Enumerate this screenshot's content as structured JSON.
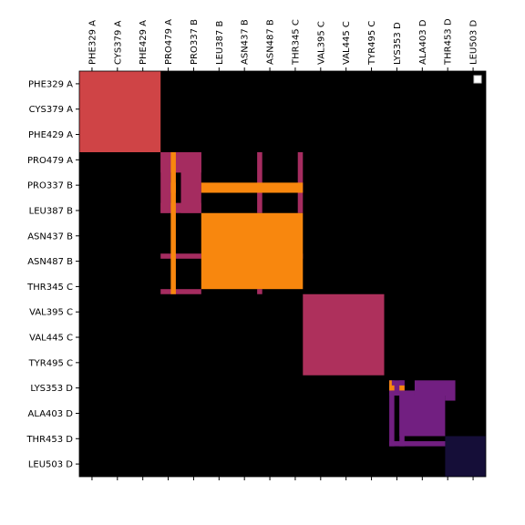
{
  "chart_data": {
    "type": "heatmap",
    "title": "",
    "xlabel": "",
    "ylabel": "",
    "labels": [
      "PHE329 A",
      "CYS379 A",
      "PHE429 A",
      "PRO479 A",
      "PRO337 B",
      "LEU387 B",
      "ASN437 B",
      "ASN487 B",
      "THR345 C",
      "VAL395 C",
      "VAL445 C",
      "TYR495 C",
      "LYS353 D",
      "ALA403 D",
      "THR453 D",
      "LEU503 D"
    ],
    "background_color": "#000000",
    "colors": {
      "red": "#cf4446",
      "magenta": "#a52c60",
      "orange": "#f8870e",
      "crimson": "#ae305c",
      "purple": "#721f81",
      "indigo": "#150e38"
    },
    "blocks": [
      {
        "rows": [
          0,
          16
        ],
        "cols": [
          0,
          16
        ],
        "color": "red"
      },
      {
        "rows": [
          16,
          20
        ],
        "cols": [
          16,
          24
        ],
        "color": "magenta"
      },
      {
        "rows": [
          16,
          28
        ],
        "cols": [
          16,
          18
        ],
        "color": "magenta"
      },
      {
        "rows": [
          16,
          20
        ],
        "cols": [
          18,
          24
        ],
        "color": "magenta"
      },
      {
        "rows": [
          16,
          28
        ],
        "cols": [
          20,
          24
        ],
        "color": "magenta"
      },
      {
        "rows": [
          26,
          28
        ],
        "cols": [
          16,
          24
        ],
        "color": "magenta"
      },
      {
        "rows": [
          16,
          28
        ],
        "cols": [
          35,
          36
        ],
        "color": "magenta"
      },
      {
        "rows": [
          16,
          28
        ],
        "cols": [
          43,
          44
        ],
        "color": "magenta"
      },
      {
        "rows": [
          36,
          37
        ],
        "cols": [
          16,
          24
        ],
        "color": "magenta"
      },
      {
        "rows": [
          36,
          37
        ],
        "cols": [
          35,
          44
        ],
        "color": "magenta"
      },
      {
        "rows": [
          43,
          44
        ],
        "cols": [
          16,
          24
        ],
        "color": "magenta"
      },
      {
        "rows": [
          43,
          44
        ],
        "cols": [
          35,
          36
        ],
        "color": "magenta"
      },
      {
        "rows": [
          22,
          24
        ],
        "cols": [
          24,
          44
        ],
        "color": "orange"
      },
      {
        "rows": [
          16,
          44
        ],
        "cols": [
          18,
          19
        ],
        "color": "orange"
      },
      {
        "rows": [
          28,
          43
        ],
        "cols": [
          24,
          44
        ],
        "color": "orange"
      },
      {
        "rows": [
          22,
          24
        ],
        "cols": [
          18,
          19
        ],
        "color": "orange"
      },
      {
        "rows": [
          44,
          60
        ],
        "cols": [
          44,
          60
        ],
        "color": "crimson"
      },
      {
        "rows": [
          61,
          64
        ],
        "cols": [
          61,
          64
        ],
        "color": "purple"
      },
      {
        "rows": [
          61,
          74
        ],
        "cols": [
          63,
          64
        ],
        "color": "purple"
      },
      {
        "rows": [
          63,
          72
        ],
        "cols": [
          63,
          72
        ],
        "color": "purple"
      },
      {
        "rows": [
          61,
          64
        ],
        "cols": [
          66,
          74
        ],
        "color": "purple"
      },
      {
        "rows": [
          61,
          74
        ],
        "cols": [
          61,
          62
        ],
        "color": "purple"
      },
      {
        "rows": [
          73,
          74
        ],
        "cols": [
          61,
          74
        ],
        "color": "purple"
      },
      {
        "rows": [
          64,
          65
        ],
        "cols": [
          72,
          74
        ],
        "color": "purple"
      },
      {
        "rows": [
          62,
          63
        ],
        "cols": [
          61,
          62
        ],
        "color": "orange"
      },
      {
        "rows": [
          62,
          63
        ],
        "cols": [
          63,
          64
        ],
        "color": "orange"
      },
      {
        "rows": [
          61,
          63
        ],
        "cols": [
          61,
          61.5
        ],
        "color": "orange"
      },
      {
        "rows": [
          72,
          80
        ],
        "cols": [
          72,
          80
        ],
        "color": "indigo"
      }
    ],
    "grid_size": 80,
    "legend": {
      "position": "top-right",
      "entries": []
    }
  }
}
